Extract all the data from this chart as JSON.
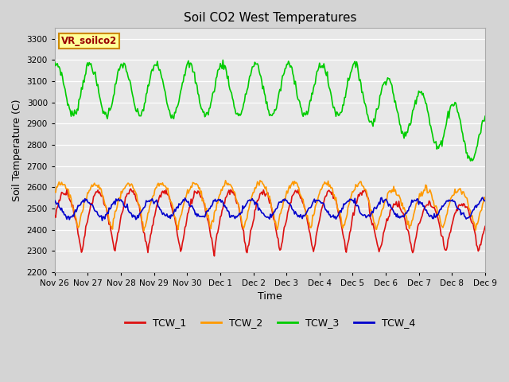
{
  "title": "Soil CO2 West Temperatures",
  "xlabel": "Time",
  "ylabel": "Soil Temperature (C)",
  "ylim": [
    2200,
    3350
  ],
  "fig_bg": "#d4d4d4",
  "plot_bg": "#e8e8e8",
  "grid_color": "#ffffff",
  "series": {
    "TCW_1": {
      "color": "#dd1111",
      "lw": 1.2
    },
    "TCW_2": {
      "color": "#ff9900",
      "lw": 1.2
    },
    "TCW_3": {
      "color": "#00cc00",
      "lw": 1.2
    },
    "TCW_4": {
      "color": "#0000cc",
      "lw": 1.2
    }
  },
  "annotation_text": "VR_soilco2",
  "annotation_bg": "#ffff99",
  "annotation_border": "#cc8800",
  "x_tick_labels": [
    "Nov 26",
    "Nov 27",
    "Nov 28",
    "Nov 29",
    "Nov 30",
    "Dec 1",
    "Dec 2",
    "Dec 3",
    "Dec 4",
    "Dec 5",
    "Dec 6",
    "Dec 7",
    "Dec 8",
    "Dec 9"
  ],
  "n_points": 500
}
